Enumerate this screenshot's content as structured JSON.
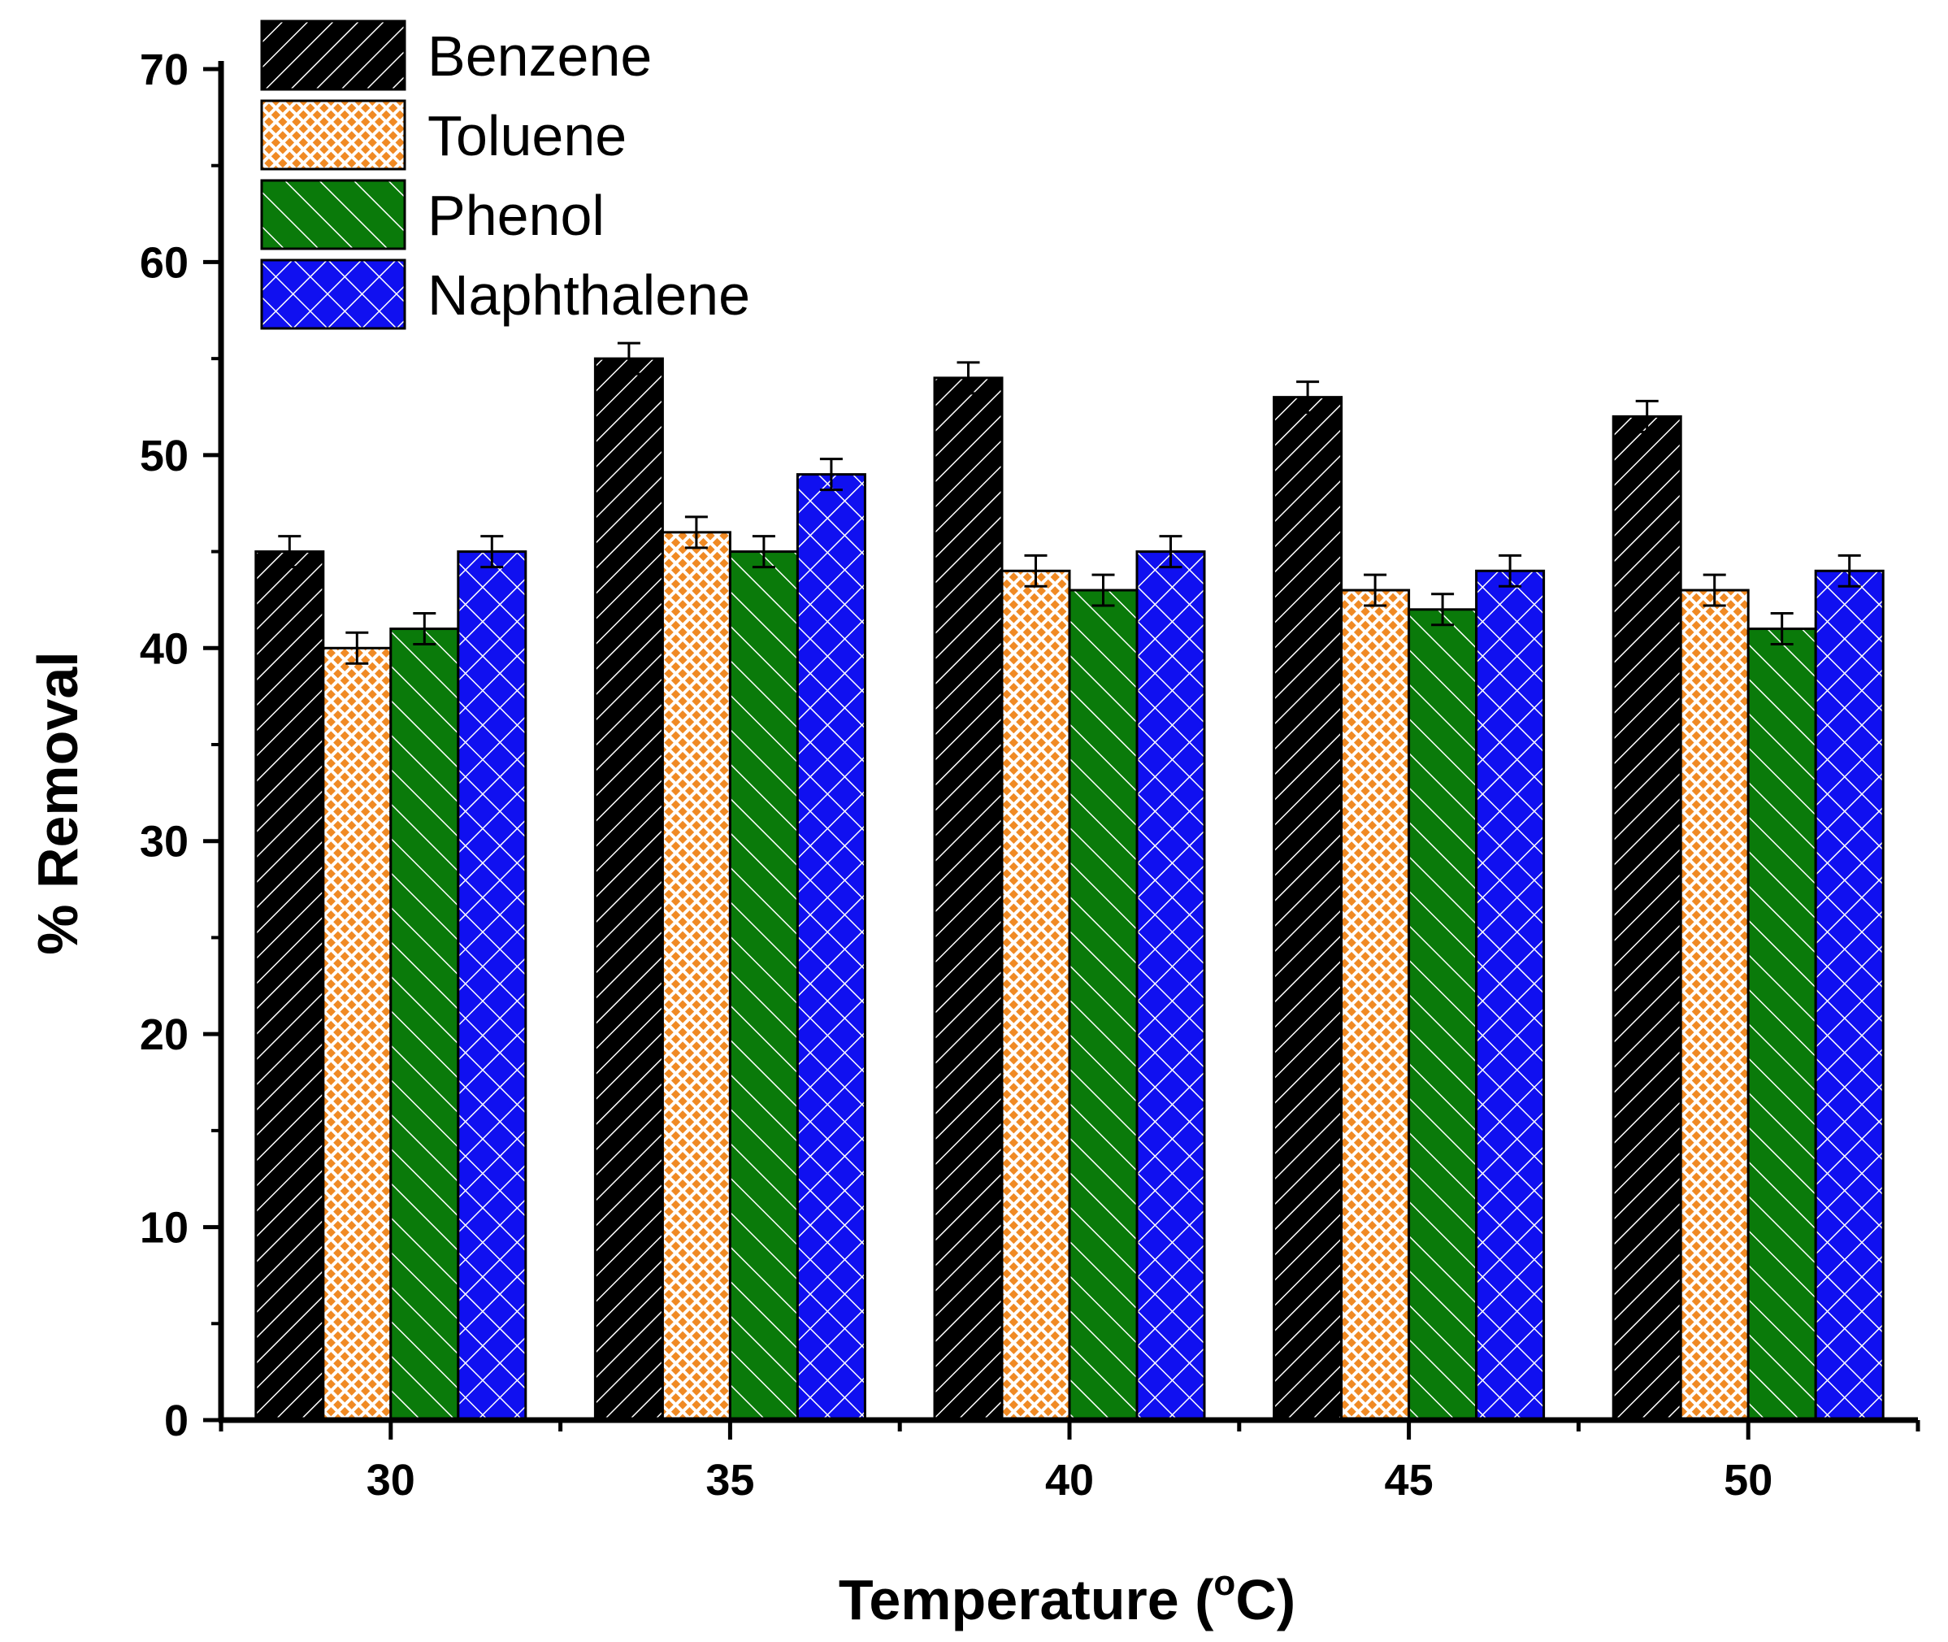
{
  "chart_data": {
    "type": "bar",
    "xlabel": "Temperature (",
    "xlabel_sup": "o",
    "xlabel_unit": "C)",
    "ylabel": "% Removal",
    "ylim": [
      0,
      70
    ],
    "yticks": [
      0,
      10,
      20,
      30,
      40,
      50,
      60,
      70
    ],
    "categories": [
      "30",
      "35",
      "40",
      "45",
      "50"
    ],
    "legend_position": "top-left",
    "error_bar": 0.8,
    "series": [
      {
        "name": "Benzene",
        "values": [
          45,
          55,
          54,
          53,
          52
        ],
        "color": "#000000",
        "pattern": "hatch-forward"
      },
      {
        "name": "Toluene",
        "values": [
          40,
          46,
          44,
          43,
          43
        ],
        "color": "#f08a24",
        "pattern": "fine-crosshatch"
      },
      {
        "name": "Phenol",
        "values": [
          41,
          45,
          43,
          42,
          41
        ],
        "color": "#0a7a0a",
        "pattern": "hatch-back"
      },
      {
        "name": "Naphthalene",
        "values": [
          45,
          49,
          45,
          44,
          44
        ],
        "color": "#1010f0",
        "pattern": "crosshatch"
      }
    ]
  }
}
